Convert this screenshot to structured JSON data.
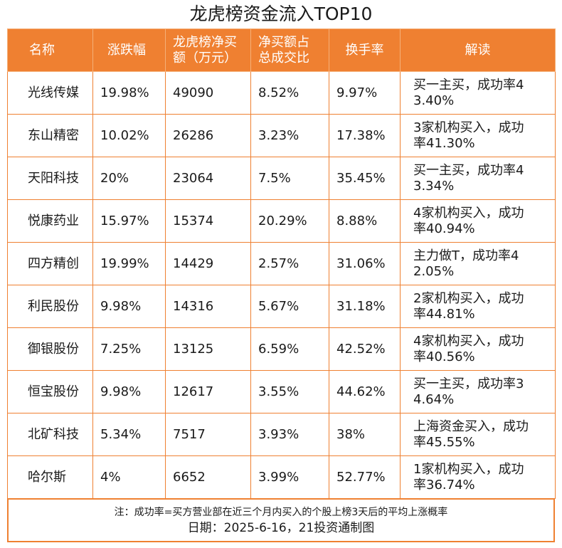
{
  "header": {
    "title": "龙虎榜资金流入TOP10"
  },
  "table": {
    "headers": [
      "名称",
      "涨跌幅",
      [
        "龙虎榜净买",
        "额（万元）"
      ],
      [
        "净买额占",
        "总成交比"
      ],
      "换手率",
      "解读"
    ],
    "rows": [
      [
        "光线传媒",
        "19.98%",
        "49090",
        "8.52%",
        "9.97%",
        [
          "买一主买，成功率4",
          "3.40%"
        ]
      ],
      [
        "东山精密",
        "10.02%",
        "26286",
        "3.23%",
        "17.38%",
        [
          "3家机构买入，成功",
          "率41.30%"
        ]
      ],
      [
        "天阳科技",
        "20%",
        "23064",
        "7.5%",
        "35.45%",
        [
          "买一主买，成功率4",
          "3.34%"
        ]
      ],
      [
        "悦康药业",
        "15.97%",
        "15374",
        "20.29%",
        "8.88%",
        [
          "4家机构买入，成功",
          "率40.94%"
        ]
      ],
      [
        "四方精创",
        "19.99%",
        "14429",
        "2.57%",
        "31.06%",
        [
          "主力做T，成功率4",
          "2.05%"
        ]
      ],
      [
        "利民股份",
        "9.98%",
        "14316",
        "5.67%",
        "31.18%",
        [
          "2家机构买入，成功",
          "率44.81%"
        ]
      ],
      [
        "御银股份",
        "7.25%",
        "13125",
        "6.59%",
        "42.52%",
        [
          "4家机构买入，成功",
          "率40.56%"
        ]
      ],
      [
        "恒宝股份",
        "9.98%",
        "12617",
        "3.55%",
        "44.62%",
        [
          "买一主买，成功率3",
          "4.64%"
        ]
      ],
      [
        "北矿科技",
        "5.34%",
        "7517",
        "3.93%",
        "38%",
        [
          "上海资金买入，成功",
          "率45.55%"
        ]
      ],
      [
        "哈尔斯",
        "4%",
        "6652",
        "3.99%",
        "52.77%",
        [
          "1家机构买入，成功",
          "率36.74%"
        ]
      ]
    ]
  },
  "footer": {
    "note": "注：成功率=买方营业部在近三个月内买入的个股上榜3天后的平均上涨概率",
    "date": "日期：2025-6-16，21投资通制图"
  }
}
